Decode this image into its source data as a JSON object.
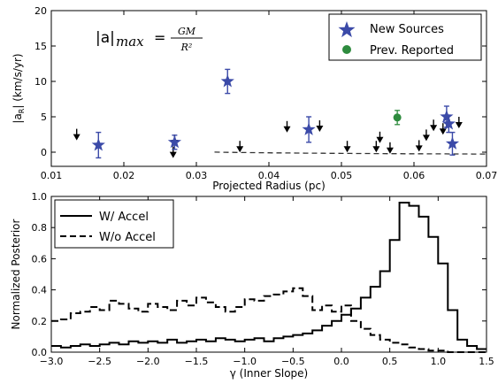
{
  "chart_data": [
    {
      "type": "scatter",
      "xlabel": "Projected Radius (pc)",
      "ylabel": "|a_R| (km/s/yr)",
      "xlim": [
        0.01,
        0.07
      ],
      "ylim": [
        -2,
        20
      ],
      "x_ticks": [
        0.01,
        0.02,
        0.03,
        0.04,
        0.05,
        0.06,
        0.07
      ],
      "x_tick_labels": [
        "0.01",
        "0.02",
        "0.03",
        "0.04",
        "0.05",
        "0.06",
        "0.07"
      ],
      "y_ticks": [
        0,
        5,
        10,
        15,
        20
      ],
      "y_tick_labels": [
        "0",
        "5",
        "10",
        "15",
        "20"
      ],
      "grid": false,
      "legend_position": "top-right",
      "annotation": {
        "lhs": "|a|",
        "sub": "max",
        "eq": "=",
        "numerator": "GM",
        "denominator": "R²"
      },
      "max_curve": {
        "coefficient": 0.0165,
        "power": -1,
        "x_start": 0.0325,
        "x_end": 0.07,
        "style": "dashed"
      },
      "series": [
        {
          "name": "New Sources",
          "marker": "star",
          "color": "#3b4aa8",
          "points": [
            {
              "x": 0.0165,
              "y": 1.0,
              "yerr": 1.8
            },
            {
              "x": 0.027,
              "y": 1.4,
              "yerr": 1.0
            },
            {
              "x": 0.0343,
              "y": 10.0,
              "yerr": 1.7
            },
            {
              "x": 0.0455,
              "y": 3.2,
              "yerr": 1.8
            },
            {
              "x": 0.0645,
              "y": 5.0,
              "yerr": 1.5
            },
            {
              "x": 0.0648,
              "y": 4.0,
              "yerr": 1.2
            },
            {
              "x": 0.0653,
              "y": 1.2,
              "yerr": 1.6
            }
          ]
        },
        {
          "name": "Prev. Reported",
          "marker": "circle",
          "color": "#2e8b3e",
          "points": [
            {
              "x": 0.0577,
              "y": 4.9,
              "yerr": 1.0
            }
          ]
        },
        {
          "name": "upper limits",
          "marker": "down-arrow",
          "color": "#000000",
          "points": [
            {
              "x": 0.0135,
              "y": 3.3
            },
            {
              "x": 0.0268,
              "y": 0.8
            },
            {
              "x": 0.027,
              "y": 2.5
            },
            {
              "x": 0.036,
              "y": 1.6
            },
            {
              "x": 0.0425,
              "y": 4.4
            },
            {
              "x": 0.047,
              "y": 4.5
            },
            {
              "x": 0.0508,
              "y": 1.6
            },
            {
              "x": 0.0548,
              "y": 1.6
            },
            {
              "x": 0.0553,
              "y": 2.9
            },
            {
              "x": 0.0567,
              "y": 1.4
            },
            {
              "x": 0.0607,
              "y": 1.7
            },
            {
              "x": 0.0617,
              "y": 3.2
            },
            {
              "x": 0.0627,
              "y": 4.6
            },
            {
              "x": 0.064,
              "y": 4.1
            },
            {
              "x": 0.0662,
              "y": 5.0
            }
          ]
        }
      ]
    },
    {
      "type": "line",
      "step": true,
      "xlabel": "γ (Inner Slope)",
      "ylabel": "Normalized Posterior",
      "xlim": [
        -3.0,
        1.5
      ],
      "ylim": [
        0.0,
        1.0
      ],
      "x_ticks": [
        -3.0,
        -2.5,
        -2.0,
        -1.5,
        -1.0,
        -0.5,
        0.0,
        0.5,
        1.0,
        1.5
      ],
      "x_tick_labels": [
        "−3.0",
        "−2.5",
        "−2.0",
        "−1.5",
        "−1.0",
        "−0.5",
        "0.0",
        "0.5",
        "1.0",
        "1.5"
      ],
      "y_ticks": [
        0.0,
        0.2,
        0.4,
        0.6,
        0.8,
        1.0
      ],
      "y_tick_labels": [
        "0.0",
        "0.2",
        "0.4",
        "0.6",
        "0.8",
        "1.0"
      ],
      "grid": false,
      "legend_position": "top-left",
      "bin_start": -3.0,
      "bin_width": 0.1,
      "series": [
        {
          "name": "W/ Accel",
          "style": "solid",
          "values": [
            0.04,
            0.03,
            0.04,
            0.05,
            0.04,
            0.05,
            0.06,
            0.05,
            0.07,
            0.06,
            0.07,
            0.06,
            0.08,
            0.06,
            0.07,
            0.08,
            0.07,
            0.09,
            0.08,
            0.07,
            0.08,
            0.09,
            0.07,
            0.09,
            0.1,
            0.11,
            0.12,
            0.14,
            0.17,
            0.2,
            0.24,
            0.28,
            0.35,
            0.42,
            0.52,
            0.72,
            0.96,
            0.94,
            0.87,
            0.74,
            0.57,
            0.27,
            0.08,
            0.04,
            0.02
          ]
        },
        {
          "name": "W/o Accel",
          "style": "dashed",
          "values": [
            0.2,
            0.21,
            0.25,
            0.26,
            0.29,
            0.27,
            0.33,
            0.31,
            0.28,
            0.26,
            0.31,
            0.29,
            0.27,
            0.33,
            0.3,
            0.35,
            0.32,
            0.29,
            0.26,
            0.29,
            0.34,
            0.33,
            0.36,
            0.37,
            0.39,
            0.41,
            0.36,
            0.27,
            0.3,
            0.26,
            0.3,
            0.2,
            0.15,
            0.11,
            0.08,
            0.06,
            0.05,
            0.03,
            0.02,
            0.01,
            0.01,
            0.0,
            0.0,
            0.0,
            0.0
          ]
        }
      ]
    }
  ]
}
